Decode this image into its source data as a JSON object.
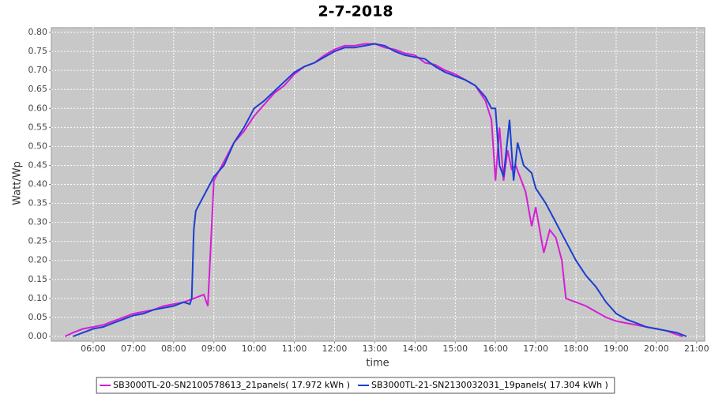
{
  "chart_data": {
    "type": "line",
    "title": "2-7-2018",
    "x_label": "time",
    "y_label": "Watt/Wp",
    "xlim": [
      4.96,
      21.2
    ],
    "ylim": [
      -0.0125,
      0.8125
    ],
    "grid": true,
    "xticks": [
      {
        "value": 6,
        "label": "06:00"
      },
      {
        "value": 7,
        "label": "07:00"
      },
      {
        "value": 8,
        "label": "08:00"
      },
      {
        "value": 9,
        "label": "09:00"
      },
      {
        "value": 10,
        "label": "10:00"
      },
      {
        "value": 11,
        "label": "11:00"
      },
      {
        "value": 12,
        "label": "12:00"
      },
      {
        "value": 13,
        "label": "13:00"
      },
      {
        "value": 14,
        "label": "14:00"
      },
      {
        "value": 15,
        "label": "15:00"
      },
      {
        "value": 16,
        "label": "16:00"
      },
      {
        "value": 17,
        "label": "17:00"
      },
      {
        "value": 18,
        "label": "18:00"
      },
      {
        "value": 19,
        "label": "19:00"
      },
      {
        "value": 20,
        "label": "20:00"
      },
      {
        "value": 21,
        "label": "21:00"
      }
    ],
    "yticks": [
      {
        "value": 0,
        "label": "0.00"
      },
      {
        "value": 0.05,
        "label": "0.05"
      },
      {
        "value": 0.1,
        "label": "0.10"
      },
      {
        "value": 0.15,
        "label": "0.15"
      },
      {
        "value": 0.2,
        "label": "0.20"
      },
      {
        "value": 0.25,
        "label": "0.25"
      },
      {
        "value": 0.3,
        "label": "0.30"
      },
      {
        "value": 0.35,
        "label": "0.35"
      },
      {
        "value": 0.4,
        "label": "0.40"
      },
      {
        "value": 0.45,
        "label": "0.45"
      },
      {
        "value": 0.5,
        "label": "0.50"
      },
      {
        "value": 0.55,
        "label": "0.55"
      },
      {
        "value": 0.6,
        "label": "0.60"
      },
      {
        "value": 0.65,
        "label": "0.65"
      },
      {
        "value": 0.7,
        "label": "0.70"
      },
      {
        "value": 0.75,
        "label": "0.75"
      },
      {
        "value": 0.8,
        "label": "0.80"
      }
    ],
    "series": [
      {
        "name": "SB3000TL-20-SN2100578613_21panels( 17.972 kWh )",
        "color": "#d61ed6",
        "x": [
          5.3,
          5.5,
          5.75,
          6,
          6.25,
          6.5,
          6.75,
          7,
          7.25,
          7.5,
          7.75,
          8,
          8.25,
          8.5,
          8.75,
          8.85,
          8.95,
          9,
          9.25,
          9.5,
          9.75,
          10,
          10.25,
          10.5,
          10.75,
          11,
          11.25,
          11.5,
          11.75,
          12,
          12.25,
          12.5,
          12.75,
          13,
          13.25,
          13.5,
          13.75,
          14,
          14.25,
          14.5,
          14.75,
          15,
          15.25,
          15.5,
          15.75,
          15.9,
          16,
          16.1,
          16.2,
          16.3,
          16.4,
          16.5,
          16.75,
          16.9,
          17,
          17.2,
          17.35,
          17.5,
          17.65,
          17.75,
          18,
          18.25,
          18.5,
          18.75,
          19,
          19.25,
          19.5,
          19.75,
          20,
          20.25,
          20.5,
          20.65
        ],
        "values": [
          0,
          0.01,
          0.02,
          0.025,
          0.03,
          0.04,
          0.05,
          0.06,
          0.065,
          0.07,
          0.08,
          0.085,
          0.09,
          0.1,
          0.11,
          0.08,
          0.3,
          0.41,
          0.46,
          0.51,
          0.54,
          0.58,
          0.61,
          0.64,
          0.66,
          0.69,
          0.71,
          0.72,
          0.74,
          0.755,
          0.765,
          0.765,
          0.77,
          0.77,
          0.76,
          0.755,
          0.745,
          0.74,
          0.72,
          0.715,
          0.7,
          0.69,
          0.675,
          0.66,
          0.62,
          0.57,
          0.41,
          0.55,
          0.41,
          0.49,
          0.44,
          0.45,
          0.38,
          0.29,
          0.34,
          0.22,
          0.28,
          0.26,
          0.2,
          0.1,
          0.09,
          0.08,
          0.065,
          0.05,
          0.04,
          0.035,
          0.03,
          0.025,
          0.02,
          0.015,
          0.005,
          0
        ]
      },
      {
        "name": "SB3000TL-21-SN2130032031_19panels( 17.304 kWh )",
        "color": "#1a3fd0",
        "x": [
          5.5,
          5.75,
          6,
          6.25,
          6.5,
          6.75,
          7,
          7.25,
          7.5,
          7.75,
          8,
          8.25,
          8.4,
          8.45,
          8.5,
          8.55,
          8.75,
          9,
          9.25,
          9.5,
          9.75,
          10,
          10.25,
          10.5,
          10.75,
          11,
          11.25,
          11.5,
          11.75,
          12,
          12.25,
          12.5,
          12.75,
          13,
          13.25,
          13.5,
          13.75,
          14,
          14.25,
          14.5,
          14.75,
          15,
          15.25,
          15.5,
          15.75,
          15.9,
          16,
          16.1,
          16.2,
          16.35,
          16.45,
          16.55,
          16.7,
          16.9,
          17,
          17.25,
          17.5,
          17.75,
          18,
          18.25,
          18.5,
          18.75,
          19,
          19.25,
          19.5,
          19.75,
          20,
          20.25,
          20.5,
          20.75
        ],
        "values": [
          0,
          0.01,
          0.02,
          0.025,
          0.035,
          0.045,
          0.055,
          0.06,
          0.07,
          0.075,
          0.08,
          0.09,
          0.085,
          0.1,
          0.28,
          0.33,
          0.37,
          0.42,
          0.45,
          0.51,
          0.55,
          0.6,
          0.62,
          0.645,
          0.67,
          0.695,
          0.71,
          0.72,
          0.735,
          0.75,
          0.76,
          0.76,
          0.765,
          0.77,
          0.765,
          0.75,
          0.74,
          0.735,
          0.73,
          0.71,
          0.695,
          0.685,
          0.675,
          0.66,
          0.63,
          0.6,
          0.6,
          0.45,
          0.42,
          0.57,
          0.41,
          0.51,
          0.45,
          0.43,
          0.39,
          0.35,
          0.3,
          0.25,
          0.2,
          0.16,
          0.13,
          0.09,
          0.06,
          0.045,
          0.035,
          0.025,
          0.02,
          0.015,
          0.01,
          0
        ]
      }
    ]
  }
}
